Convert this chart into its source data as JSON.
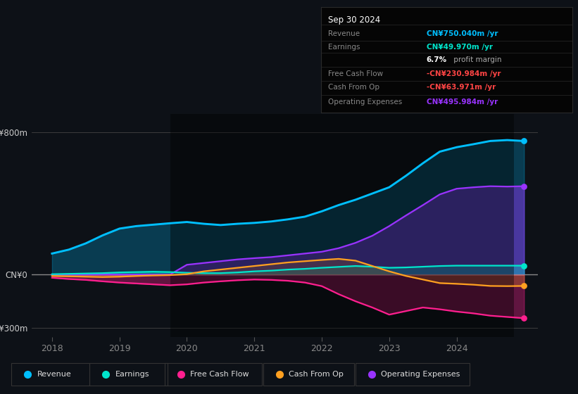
{
  "background_color": "#0d1117",
  "chart_bg": "#0d1117",
  "ylim": [
    -350,
    900
  ],
  "y_ticks_vals": [
    800,
    0,
    -300
  ],
  "y_tick_labels": [
    "CN¥800m",
    "CN¥0",
    "-CN¥300m"
  ],
  "x_years": [
    2018.0,
    2018.25,
    2018.5,
    2018.75,
    2019.0,
    2019.25,
    2019.5,
    2019.75,
    2020.0,
    2020.25,
    2020.5,
    2020.75,
    2021.0,
    2021.25,
    2021.5,
    2021.75,
    2022.0,
    2022.25,
    2022.5,
    2022.75,
    2023.0,
    2023.25,
    2023.5,
    2023.75,
    2024.0,
    2024.25,
    2024.5,
    2024.75,
    2025.0
  ],
  "revenue": [
    118,
    140,
    175,
    220,
    258,
    272,
    280,
    288,
    295,
    285,
    278,
    285,
    290,
    298,
    310,
    325,
    355,
    390,
    420,
    455,
    490,
    555,
    625,
    690,
    715,
    732,
    750,
    755,
    750
  ],
  "earnings": [
    2,
    4,
    6,
    8,
    12,
    14,
    16,
    14,
    10,
    8,
    8,
    12,
    18,
    22,
    28,
    32,
    38,
    43,
    48,
    44,
    38,
    40,
    44,
    48,
    50,
    50,
    50,
    50,
    50
  ],
  "free_cash_flow": [
    -18,
    -25,
    -30,
    -38,
    -45,
    -50,
    -55,
    -60,
    -55,
    -45,
    -38,
    -32,
    -28,
    -30,
    -35,
    -45,
    -65,
    -110,
    -150,
    -185,
    -225,
    -205,
    -185,
    -195,
    -208,
    -218,
    -231,
    -238,
    -245
  ],
  "cash_from_op": [
    -8,
    -10,
    -12,
    -14,
    -12,
    -8,
    -5,
    -3,
    2,
    18,
    28,
    38,
    48,
    58,
    68,
    75,
    82,
    88,
    78,
    48,
    18,
    -8,
    -28,
    -48,
    -52,
    -57,
    -64,
    -65,
    -64
  ],
  "operating_expenses": [
    0,
    0,
    0,
    0,
    0,
    0,
    0,
    0,
    55,
    65,
    75,
    85,
    92,
    98,
    108,
    118,
    128,
    148,
    178,
    218,
    272,
    332,
    390,
    450,
    482,
    490,
    496,
    494,
    496
  ],
  "revenue_color": "#00bfff",
  "earnings_color": "#00e5cc",
  "free_cash_flow_color": "#ff1f8f",
  "cash_from_op_color": "#ffa020",
  "operating_expenses_color": "#9933ff",
  "overlay_start": 2019.75,
  "overlay_end": 2024.85,
  "x_xlim_left": 2017.7,
  "x_xlim_right": 2025.2,
  "x_tick_positions": [
    2018,
    2019,
    2020,
    2021,
    2022,
    2023,
    2024
  ],
  "x_tick_labels": [
    "2018",
    "2019",
    "2020",
    "2021",
    "2022",
    "2023",
    "2024"
  ],
  "info_box": {
    "date": "Sep 30 2024",
    "rows": [
      {
        "label": "Revenue",
        "value": "CN¥750.040m /yr",
        "value_color": "#00bfff",
        "type": "normal"
      },
      {
        "label": "Earnings",
        "value": "CN¥49.970m /yr",
        "value_color": "#00e5cc",
        "type": "normal"
      },
      {
        "label": "",
        "value": "profit margin",
        "value_color": "#aaaaaa",
        "type": "margin",
        "bold_part": "6.7%"
      },
      {
        "label": "Free Cash Flow",
        "value": "-CN¥230.984m /yr",
        "value_color": "#ff4444",
        "type": "normal"
      },
      {
        "label": "Cash From Op",
        "value": "-CN¥63.971m /yr",
        "value_color": "#ff4444",
        "type": "normal"
      },
      {
        "label": "Operating Expenses",
        "value": "CN¥495.984m /yr",
        "value_color": "#9933ff",
        "type": "normal"
      }
    ]
  },
  "legend_items": [
    {
      "label": "Revenue",
      "color": "#00bfff"
    },
    {
      "label": "Earnings",
      "color": "#00e5cc"
    },
    {
      "label": "Free Cash Flow",
      "color": "#ff1f8f"
    },
    {
      "label": "Cash From Op",
      "color": "#ffa020"
    },
    {
      "label": "Operating Expenses",
      "color": "#9933ff"
    }
  ]
}
